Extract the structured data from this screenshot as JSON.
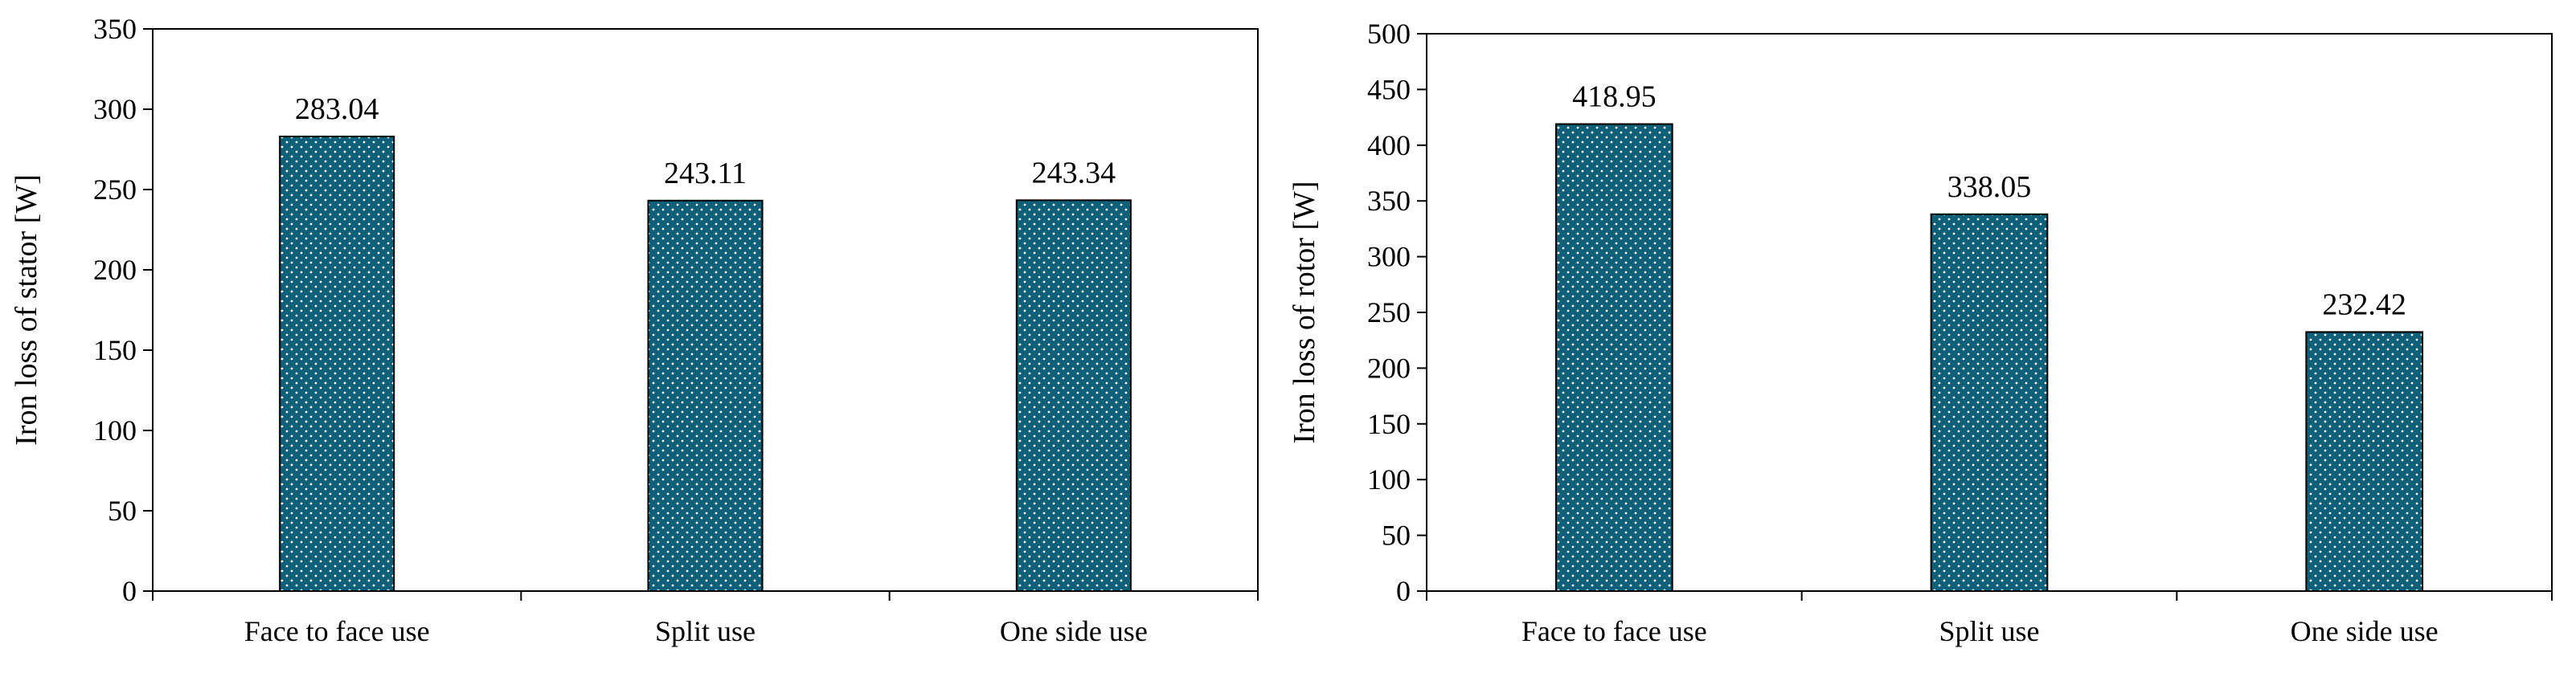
{
  "chart_data": [
    {
      "type": "bar",
      "title": "",
      "xlabel": "",
      "ylabel": "Iron loss of stator [W]",
      "categories": [
        "Face to face use",
        "Split use",
        "One side use"
      ],
      "values": [
        283.04,
        243.11,
        243.34
      ],
      "value_labels": [
        "283.04",
        "243.11",
        "243.34"
      ],
      "ylim": [
        0,
        350
      ],
      "yticks": [
        0,
        50,
        100,
        150,
        200,
        250,
        300,
        350
      ],
      "ytick_labels": [
        "0",
        "50",
        "100",
        "150",
        "200",
        "250",
        "300",
        "350"
      ],
      "bar_color": "#0e5f78",
      "bar_pattern": "white dots",
      "grid": false,
      "legend": "none"
    },
    {
      "type": "bar",
      "title": "",
      "xlabel": "",
      "ylabel": "Iron loss of rotor [W]",
      "categories": [
        "Face to face use",
        "Split use",
        "One side use"
      ],
      "values": [
        418.95,
        338.05,
        232.42
      ],
      "value_labels": [
        "418.95",
        "338.05",
        "232.42"
      ],
      "ylim": [
        0,
        500
      ],
      "yticks": [
        0,
        50,
        100,
        150,
        200,
        250,
        300,
        350,
        400,
        450,
        500
      ],
      "ytick_labels": [
        "0",
        "50",
        "100",
        "150",
        "200",
        "250",
        "300",
        "350",
        "400",
        "450",
        "500"
      ],
      "bar_color": "#0e5f78",
      "bar_pattern": "white dots",
      "grid": false,
      "legend": "none"
    }
  ]
}
